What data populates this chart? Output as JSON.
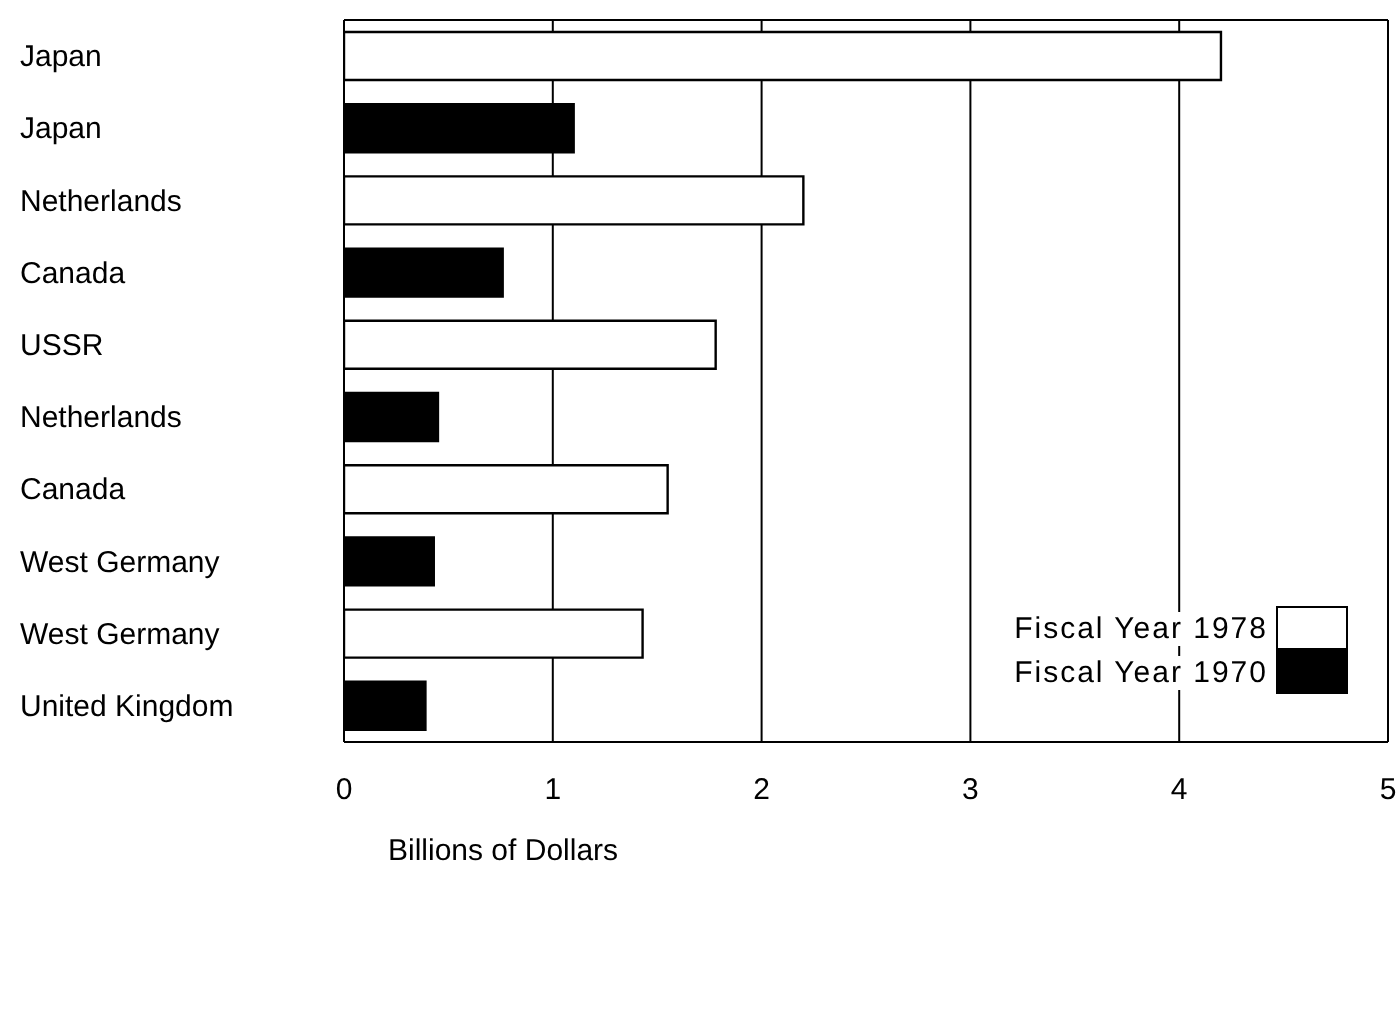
{
  "chart_data": {
    "type": "bar",
    "orientation": "horizontal",
    "xlabel": "Billions of Dollars",
    "categories": [
      "Japan",
      "Japan",
      "Netherlands",
      "Canada",
      "USSR",
      "Netherlands",
      "Canada",
      "West Germany",
      "West Germany",
      "United Kingdom"
    ],
    "series": [
      {
        "name": "Fiscal Year 1978",
        "color": "#ffffff",
        "values": [
          4.2,
          null,
          2.2,
          null,
          1.78,
          null,
          1.55,
          null,
          1.43,
          null
        ]
      },
      {
        "name": "Fiscal Year 1970",
        "color": "#000000",
        "values": [
          null,
          1.1,
          null,
          0.76,
          null,
          0.45,
          null,
          0.43,
          null,
          0.39
        ]
      }
    ],
    "xlim": [
      0,
      5
    ],
    "xticks": [
      0,
      1,
      2,
      3,
      4,
      5
    ],
    "grid": "x",
    "legend": "bottom right"
  }
}
